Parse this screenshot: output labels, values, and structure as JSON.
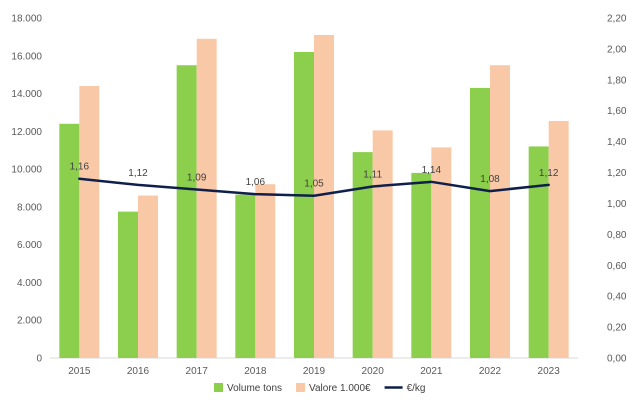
{
  "chart_data": {
    "type": "bar+line",
    "title": "",
    "categories": [
      "2015",
      "2016",
      "2017",
      "2018",
      "2019",
      "2020",
      "2021",
      "2022",
      "2023"
    ],
    "series": [
      {
        "name": "Volume tons",
        "type": "bar",
        "axis": "left",
        "color": "#8ccf4d",
        "values": [
          12400,
          7750,
          15500,
          8650,
          16200,
          10900,
          9800,
          14300,
          11200
        ]
      },
      {
        "name": "Valore 1.000€",
        "type": "bar",
        "axis": "left",
        "color": "#f9c9a7",
        "values": [
          14400,
          8600,
          16900,
          9200,
          17100,
          12050,
          11150,
          15500,
          12550
        ]
      },
      {
        "name": "€/kg",
        "type": "line",
        "axis": "right",
        "color": "#0f1f4b",
        "values": [
          1.16,
          1.12,
          1.09,
          1.06,
          1.05,
          1.11,
          1.14,
          1.08,
          1.12
        ],
        "labels": [
          "1,16",
          "1,12",
          "1,09",
          "1,06",
          "1,05",
          "1,11",
          "1,14",
          "1,08",
          "1,12"
        ]
      }
    ],
    "y_left": {
      "range": [
        0,
        18000
      ],
      "ticks": [
        0,
        2000,
        4000,
        6000,
        8000,
        10000,
        12000,
        14000,
        16000,
        18000
      ],
      "tick_labels": [
        "0",
        "2.000",
        "4.000",
        "6.000",
        "8.000",
        "10.000",
        "12.000",
        "14.000",
        "16.000",
        "18.000"
      ]
    },
    "y_right": {
      "range": [
        0,
        2.2
      ],
      "ticks": [
        0,
        0.2,
        0.4,
        0.6,
        0.8,
        1.0,
        1.2,
        1.4,
        1.6,
        1.8,
        2.0,
        2.2
      ],
      "tick_labels": [
        "0,00",
        "0,20",
        "0,40",
        "0,60",
        "0,80",
        "1,00",
        "1,20",
        "1,40",
        "1,60",
        "1,80",
        "2,00",
        "2,20"
      ]
    },
    "grid": false,
    "legend": {
      "position": "bottom",
      "entries": [
        "Volume tons",
        "Valore 1.000€",
        "€/kg"
      ]
    }
  }
}
